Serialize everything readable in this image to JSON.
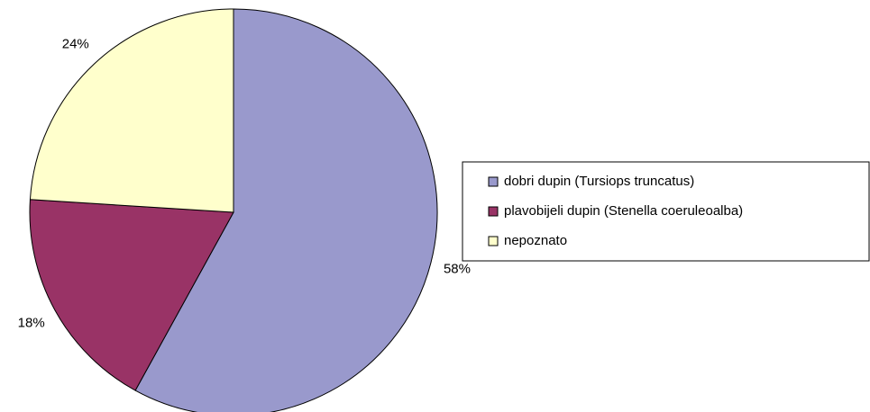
{
  "chart_data": {
    "type": "pie",
    "categories": [
      "dobri dupin (Tursiops truncatus)",
      "plavobijeli dupin (Stenella coeruleoalba)",
      "nepoznato"
    ],
    "values": [
      58,
      18,
      24
    ],
    "value_labels": [
      "58%",
      "18%",
      "24%"
    ],
    "colors": [
      "#9999cc",
      "#993366",
      "#ffffcc"
    ],
    "legend": "right"
  }
}
